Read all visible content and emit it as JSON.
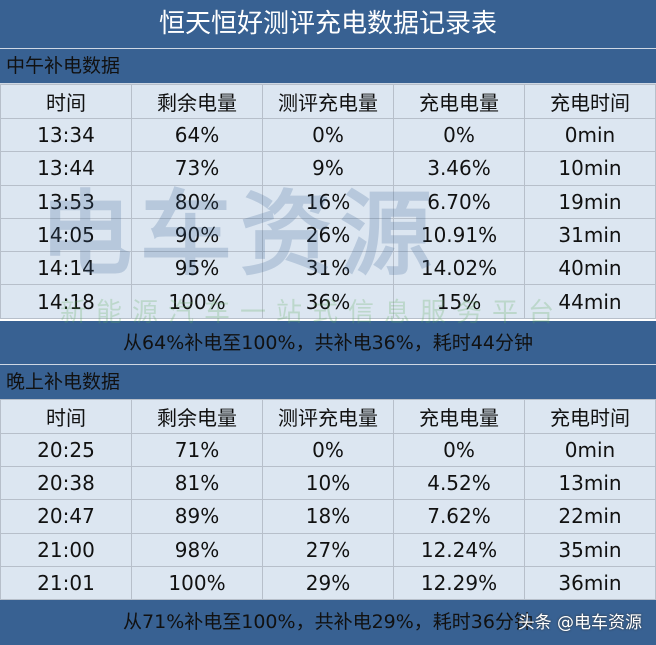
{
  "title": "恒天恒好测评充电数据记录表",
  "headers": [
    "时间",
    "剩余电量",
    "测评充电量",
    "充电电量",
    "充电时间"
  ],
  "noon": {
    "label": "中午补电数据",
    "rows": [
      [
        "13:34",
        "64%",
        "0%",
        "0%",
        "0min"
      ],
      [
        "13:44",
        "73%",
        "9%",
        "3.46%",
        "10min"
      ],
      [
        "13:53",
        "80%",
        "16%",
        "6.70%",
        "19min"
      ],
      [
        "14:05",
        "90%",
        "26%",
        "10.91%",
        "31min"
      ],
      [
        "14:14",
        "95%",
        "31%",
        "14.02%",
        "40min"
      ],
      [
        "14:18",
        "100%",
        "36%",
        "15%",
        "44min"
      ]
    ],
    "summary": "从64%补电至100%，共补电36%，耗时44分钟"
  },
  "evening": {
    "label": "晚上补电数据",
    "rows": [
      [
        "20:25",
        "71%",
        "0%",
        "0%",
        "0min"
      ],
      [
        "20:38",
        "81%",
        "10%",
        "4.52%",
        "13min"
      ],
      [
        "20:47",
        "89%",
        "18%",
        "7.62%",
        "22min"
      ],
      [
        "21:00",
        "98%",
        "27%",
        "12.24%",
        "35min"
      ],
      [
        "21:01",
        "100%",
        "29%",
        "12.29%",
        "36min"
      ]
    ],
    "summary": "从71%补电至100%，共补电29%，耗时36分钟"
  },
  "watermark": {
    "logo": "电车资源",
    "tagline": "新能源汽车一站式信息服务平台",
    "credit": "头条 @电车资源"
  },
  "colors": {
    "header_blue": "#386192",
    "cell": "#dce6f1"
  }
}
